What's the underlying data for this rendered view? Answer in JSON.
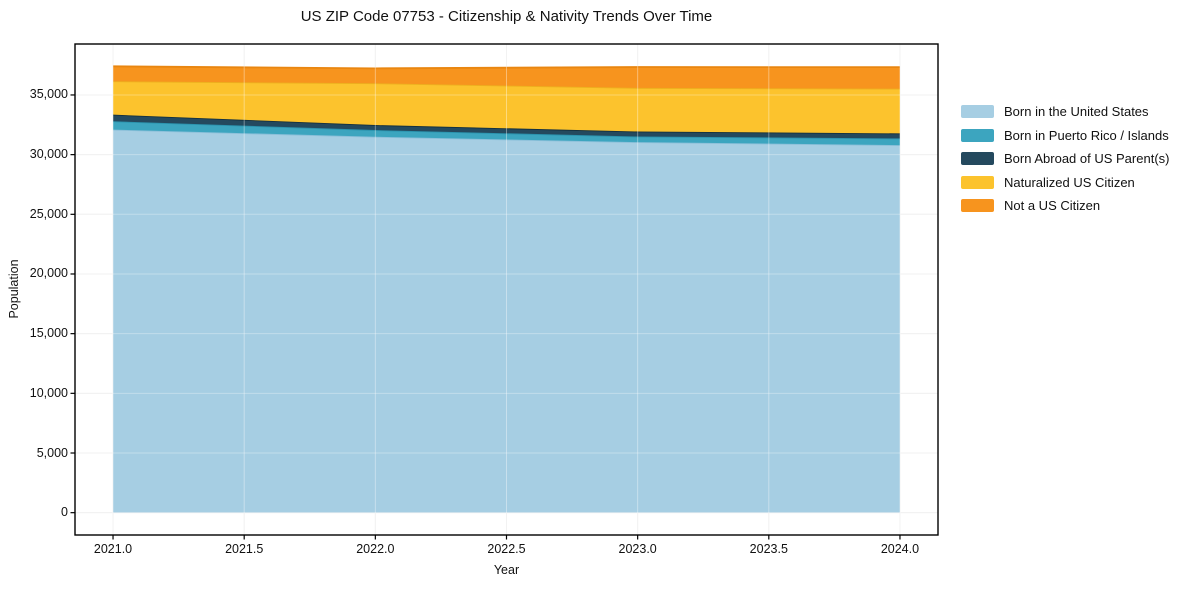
{
  "figure": {
    "background_color": "#ffffff",
    "spine_color": "#000000",
    "grid_color": "#ebebeb"
  },
  "chart_data": {
    "type": "area",
    "stacked": true,
    "title": "US ZIP Code 07753 - Citizenship & Nativity Trends Over Time",
    "xlabel": "Year",
    "ylabel": "Population",
    "grid": true,
    "legend_position": "right",
    "x": [
      2021,
      2022,
      2023,
      2024
    ],
    "xlim": [
      2020.855,
      2024.145
    ],
    "ylim": [
      -1870,
      39270
    ],
    "xticks": {
      "values": [
        2021.0,
        2021.5,
        2022.0,
        2022.5,
        2023.0,
        2023.5,
        2024.0
      ],
      "labels": [
        "2021.0",
        "2021.5",
        "2022.0",
        "2022.5",
        "2023.0",
        "2023.5",
        "2024.0"
      ]
    },
    "yticks": {
      "values": [
        0,
        5000,
        10000,
        15000,
        20000,
        25000,
        30000,
        35000
      ],
      "labels": [
        "0",
        "5,000",
        "10,000",
        "15,000",
        "20,000",
        "25,000",
        "30,000",
        "35,000"
      ]
    },
    "series": [
      {
        "name": "Born in the United States",
        "color": "#a6cee3",
        "edge": "#8abfd9",
        "values": [
          32100,
          31500,
          31050,
          30800
        ]
      },
      {
        "name": "Born in Puerto Rico / Islands",
        "color": "#3ca5bf",
        "edge": "#2a92ad",
        "values": [
          700,
          560,
          470,
          560
        ]
      },
      {
        "name": "Born Abroad of US Parent(s)",
        "color": "#24495e",
        "edge": "#14303f",
        "values": [
          550,
          420,
          420,
          420
        ]
      },
      {
        "name": "Naturalized US Citizen",
        "color": "#fcc32d",
        "edge": "#edb01e",
        "values": [
          2800,
          3500,
          3650,
          3750
        ]
      },
      {
        "name": "Not a US Citizen",
        "color": "#f7941e",
        "edge": "#e98610",
        "values": [
          1250,
          1250,
          1750,
          1800
        ]
      }
    ]
  }
}
